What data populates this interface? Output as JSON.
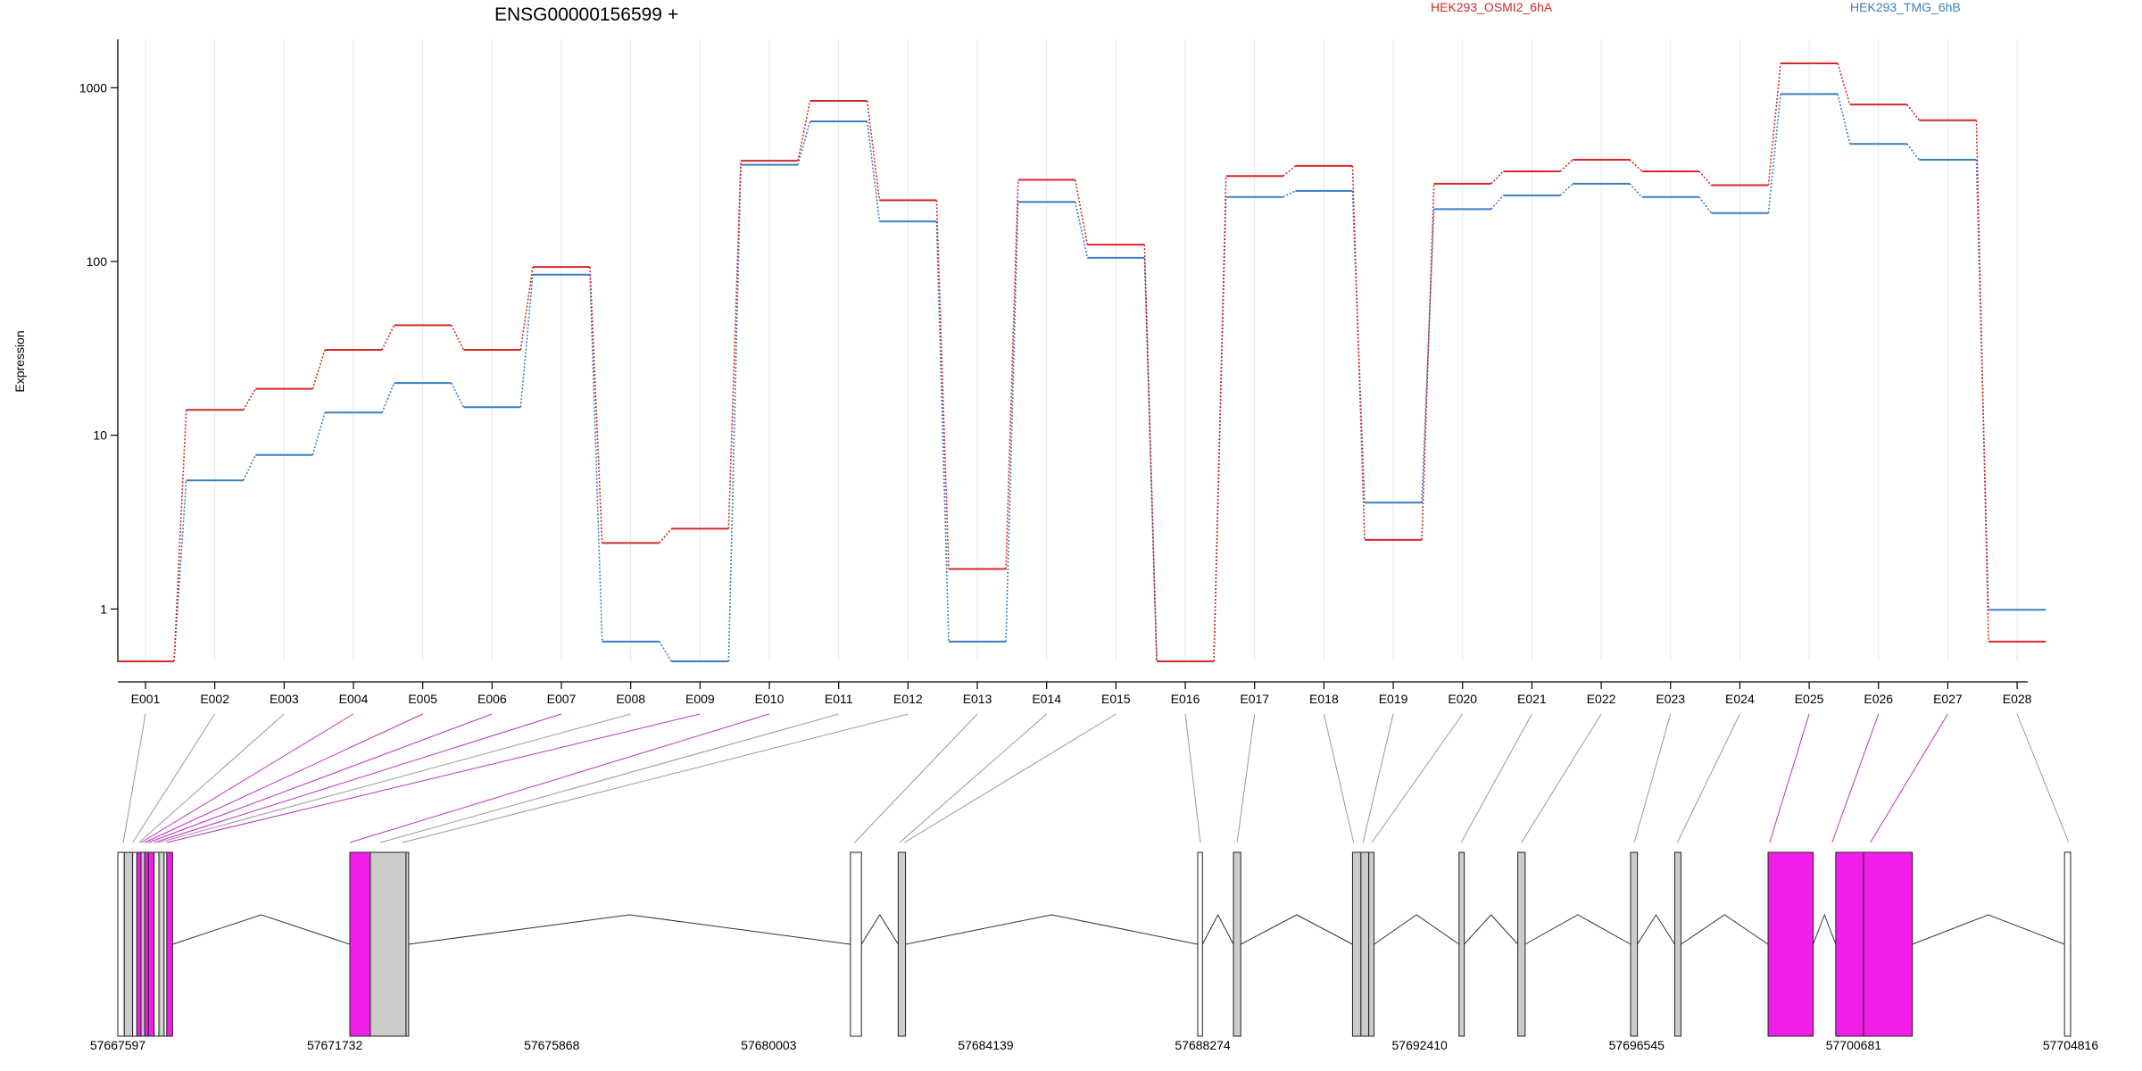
{
  "chart_data": {
    "type": "line",
    "title": "ENSG00000156599 +",
    "ylabel": "Expression",
    "xlabel": "",
    "y_scale": "log",
    "ylim": [
      0.5,
      1900
    ],
    "y_ticks": [
      "1",
      "10",
      "100",
      "1000"
    ],
    "grid": "vertical, at exon bins",
    "legend_placement": "top",
    "categories": [
      "E001",
      "E002",
      "E003",
      "E004",
      "E005",
      "E006",
      "E007",
      "E008",
      "E009",
      "E010",
      "E011",
      "E012",
      "E013",
      "E014",
      "E015",
      "E016",
      "E017",
      "E018",
      "E019",
      "E020",
      "E021",
      "E022",
      "E023",
      "E024",
      "E025",
      "E026",
      "E027",
      "E028"
    ],
    "series": [
      {
        "name": "HEK293_OSMI2_6hA",
        "color": "#d62728",
        "values": [
          0.5,
          14,
          18.5,
          31,
          43,
          31,
          93,
          2.4,
          2.9,
          380,
          840,
          225,
          1.7,
          295,
          125,
          0.5,
          310,
          355,
          2.5,
          280,
          330,
          385,
          330,
          275,
          1380,
          800,
          650,
          0.65
        ]
      },
      {
        "name": "HEK293_TMG_6hB",
        "color": "#3a7fbf",
        "values": [
          0.5,
          5.5,
          7.7,
          13.5,
          20,
          14.5,
          84,
          0.65,
          0.5,
          360,
          640,
          170,
          0.65,
          220,
          105,
          0.5,
          235,
          255,
          4.1,
          200,
          240,
          280,
          235,
          190,
          920,
          475,
          385,
          0.99
        ]
      }
    ],
    "gene_model": {
      "coordinate_labels": [
        "57667597",
        "57671732",
        "57675868",
        "57680003",
        "57684139",
        "57688274",
        "57692410",
        "57696545",
        "57700681",
        "57704816"
      ],
      "range": [
        57667597,
        57704816
      ],
      "highlight_color": "#f01ee8",
      "exons": [
        {
          "start": 57667597,
          "end": 57667720,
          "fill": "white"
        },
        {
          "start": 57667720,
          "end": 57667880,
          "fill": "grey"
        },
        {
          "start": 57667880,
          "end": 57667960,
          "fill": "white"
        },
        {
          "start": 57667960,
          "end": 57668040,
          "fill": "magenta"
        },
        {
          "start": 57668040,
          "end": 57668110,
          "fill": "grey"
        },
        {
          "start": 57668110,
          "end": 57668180,
          "fill": "magenta"
        },
        {
          "start": 57668180,
          "end": 57668290,
          "fill": "magenta"
        },
        {
          "start": 57668290,
          "end": 57668380,
          "fill": "white"
        },
        {
          "start": 57668380,
          "end": 57668480,
          "fill": "grey"
        },
        {
          "start": 57668480,
          "end": 57668530,
          "fill": "white"
        },
        {
          "start": 57668530,
          "end": 57668640,
          "fill": "magenta"
        },
        {
          "start": 57672020,
          "end": 57672410,
          "fill": "magenta"
        },
        {
          "start": 57672410,
          "end": 57673090,
          "fill": "grey"
        },
        {
          "start": 57673090,
          "end": 57673140,
          "fill": "grey"
        },
        {
          "start": 57681560,
          "end": 57681770,
          "fill": "white"
        },
        {
          "start": 57682470,
          "end": 57682610,
          "fill": "grey"
        },
        {
          "start": 57688180,
          "end": 57688270,
          "fill": "white"
        },
        {
          "start": 57688860,
          "end": 57689000,
          "fill": "grey"
        },
        {
          "start": 57691130,
          "end": 57691290,
          "fill": "grey"
        },
        {
          "start": 57691290,
          "end": 57691440,
          "fill": "grey"
        },
        {
          "start": 57691440,
          "end": 57691540,
          "fill": "grey"
        },
        {
          "start": 57693160,
          "end": 57693260,
          "fill": "grey"
        },
        {
          "start": 57694280,
          "end": 57694420,
          "fill": "grey"
        },
        {
          "start": 57696430,
          "end": 57696560,
          "fill": "grey"
        },
        {
          "start": 57697270,
          "end": 57697390,
          "fill": "grey"
        },
        {
          "start": 57699050,
          "end": 57699910,
          "fill": "magenta"
        },
        {
          "start": 57700340,
          "end": 57700870,
          "fill": "magenta"
        },
        {
          "start": 57700870,
          "end": 57701800,
          "fill": "magenta"
        },
        {
          "start": 57704700,
          "end": 57704816,
          "fill": "white"
        }
      ],
      "bin_connectors": [
        {
          "bin": "E001",
          "pos": 57667700,
          "highlight": false
        },
        {
          "bin": "E002",
          "pos": 57667880,
          "highlight": false
        },
        {
          "bin": "E003",
          "pos": 57668000,
          "highlight": false
        },
        {
          "bin": "E004",
          "pos": 57668040,
          "highlight": true
        },
        {
          "bin": "E005",
          "pos": 57668110,
          "highlight": true
        },
        {
          "bin": "E006",
          "pos": 57668180,
          "highlight": true
        },
        {
          "bin": "E007",
          "pos": 57668290,
          "highlight": true
        },
        {
          "bin": "E008",
          "pos": 57668380,
          "highlight": false
        },
        {
          "bin": "E009",
          "pos": 57668530,
          "highlight": true
        },
        {
          "bin": "E010",
          "pos": 57672020,
          "highlight": true
        },
        {
          "bin": "E011",
          "pos": 57672600,
          "highlight": false
        },
        {
          "bin": "E012",
          "pos": 57673020,
          "highlight": false
        },
        {
          "bin": "E013",
          "pos": 57681640,
          "highlight": false
        },
        {
          "bin": "E014",
          "pos": 57682500,
          "highlight": false
        },
        {
          "bin": "E015",
          "pos": 57682590,
          "highlight": false
        },
        {
          "bin": "E016",
          "pos": 57688230,
          "highlight": false
        },
        {
          "bin": "E017",
          "pos": 57688930,
          "highlight": false
        },
        {
          "bin": "E018",
          "pos": 57691150,
          "highlight": false
        },
        {
          "bin": "E019",
          "pos": 57691330,
          "highlight": false
        },
        {
          "bin": "E020",
          "pos": 57691500,
          "highlight": false
        },
        {
          "bin": "E021",
          "pos": 57693200,
          "highlight": false
        },
        {
          "bin": "E022",
          "pos": 57694350,
          "highlight": false
        },
        {
          "bin": "E023",
          "pos": 57696500,
          "highlight": false
        },
        {
          "bin": "E024",
          "pos": 57697320,
          "highlight": false
        },
        {
          "bin": "E025",
          "pos": 57699080,
          "highlight": true
        },
        {
          "bin": "E026",
          "pos": 57700270,
          "highlight": true
        },
        {
          "bin": "E027",
          "pos": 57701000,
          "highlight": true
        },
        {
          "bin": "E028",
          "pos": 57704780,
          "highlight": false
        }
      ]
    }
  }
}
